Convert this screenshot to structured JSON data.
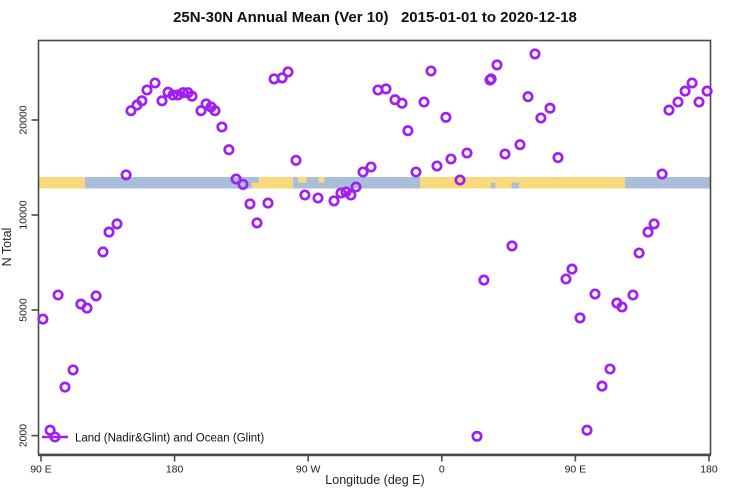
{
  "chart_data": {
    "type": "scatter",
    "title": "25N-30N Annual Mean (Ver 10)   2015-01-01 to 2020-12-18",
    "xlabel": "Longitude (deg E)",
    "ylabel": "N Total",
    "y_scale": "log10",
    "xlim": [
      88,
      541.3
    ],
    "ylim": [
      1740,
      35800
    ],
    "grid": "off",
    "x_ticks": [
      {
        "value": 90,
        "label": "90 E"
      },
      {
        "value": 180,
        "label": "180"
      },
      {
        "value": 270,
        "label": "90 W"
      },
      {
        "value": 360,
        "label": "0"
      },
      {
        "value": 450,
        "label": "90 E"
      },
      {
        "value": 540,
        "label": "180"
      }
    ],
    "y_ticks": [
      {
        "value": 2000,
        "label": "2000"
      },
      {
        "value": 5000,
        "label": "5000"
      },
      {
        "value": 10000,
        "label": "10000"
      },
      {
        "value": 20000,
        "label": "20000"
      }
    ],
    "legend": {
      "label": "Land (Nadir&Glint) and Ocean (Glint)",
      "position": "bottom-left",
      "marker": "open-circle-on-line"
    },
    "series": [
      {
        "name": "Land (Nadir&Glint) and Ocean (Glint)",
        "marker": "open-circle",
        "color": "#A020F0",
        "points": [
          [
            150.6,
            21400
          ],
          [
            154.7,
            22300
          ],
          [
            158.0,
            23000
          ],
          [
            161.4,
            24900
          ],
          [
            166.8,
            26200
          ],
          [
            171.5,
            23000
          ],
          [
            175.6,
            24500
          ],
          [
            178.9,
            24000
          ],
          [
            182.3,
            24000
          ],
          [
            185.7,
            24400
          ],
          [
            189.0,
            24400
          ],
          [
            191.7,
            23800
          ],
          [
            197.8,
            21400
          ],
          [
            201.2,
            22500
          ],
          [
            204.5,
            22000
          ],
          [
            207.2,
            21400
          ],
          [
            211.9,
            19000
          ],
          [
            216.6,
            16100
          ],
          [
            147.3,
            13400
          ],
          [
            221.4,
            13000
          ],
          [
            226.1,
            12500
          ],
          [
            230.8,
            10840
          ],
          [
            242.9,
            10910
          ],
          [
            235.5,
            9440
          ],
          [
            141.2,
            9370
          ],
          [
            135.8,
            8830
          ],
          [
            131.8,
            7640
          ],
          [
            101.5,
            5580
          ],
          [
            127.1,
            5540
          ],
          [
            116.9,
            5220
          ],
          [
            121.0,
            5070
          ],
          [
            91.3,
            4680
          ],
          [
            111.6,
            3230
          ],
          [
            106.2,
            2850
          ],
          [
            96.1,
            2080
          ],
          [
            247.0,
            27000
          ],
          [
            252.4,
            27200
          ],
          [
            256.4,
            28400
          ],
          [
            317.0,
            24900
          ],
          [
            322.4,
            25100
          ],
          [
            328.5,
            23200
          ],
          [
            333.2,
            22600
          ],
          [
            348.0,
            22800
          ],
          [
            352.7,
            28600
          ],
          [
            362.8,
            20400
          ],
          [
            337.2,
            18500
          ],
          [
            392.5,
            26800
          ],
          [
            261.8,
            14900
          ],
          [
            267.8,
            11570
          ],
          [
            276.6,
            11320
          ],
          [
            287.4,
            11080
          ],
          [
            292.1,
            11740
          ],
          [
            295.5,
            11830
          ],
          [
            298.8,
            11570
          ],
          [
            302.2,
            12270
          ],
          [
            306.9,
            13690
          ],
          [
            312.3,
            14190
          ],
          [
            342.6,
            13690
          ],
          [
            356.8,
            14300
          ],
          [
            366.2,
            15050
          ],
          [
            372.3,
            12910
          ],
          [
            377.0,
            15720
          ],
          [
            422.8,
            32400
          ],
          [
            397.2,
            29900
          ],
          [
            393.2,
            27000
          ],
          [
            418.1,
            23700
          ],
          [
            432.9,
            21800
          ],
          [
            426.8,
            20300
          ],
          [
            412.7,
            16700
          ],
          [
            402.6,
            15600
          ],
          [
            438.3,
            15200
          ],
          [
            513.1,
            21500
          ],
          [
            519.1,
            22800
          ],
          [
            523.9,
            24700
          ],
          [
            528.6,
            26200
          ],
          [
            533.3,
            22800
          ],
          [
            538.7,
            24700
          ],
          [
            508.4,
            13490
          ],
          [
            407.3,
            7980
          ],
          [
            503.0,
            9370
          ],
          [
            498.9,
            8830
          ],
          [
            492.9,
            7580
          ],
          [
            447.7,
            6740
          ],
          [
            443.7,
            6270
          ],
          [
            388.4,
            6220
          ],
          [
            463.2,
            5620
          ],
          [
            478.0,
            5260
          ],
          [
            481.4,
            5110
          ],
          [
            488.8,
            5580
          ],
          [
            453.1,
            4720
          ],
          [
            473.3,
            3250
          ],
          [
            467.9,
            2870
          ],
          [
            457.8,
            2080
          ],
          [
            383.7,
            1990
          ]
        ]
      }
    ],
    "map_strip": {
      "description": "land/ocean band at 25N-30N drawn across plot at ~N=12600",
      "value_center": 12600,
      "land_color": "#FAD87E",
      "ocean_color": "#A8BED9",
      "segments": [
        {
          "lon0": 88.0,
          "lon1": 119.6,
          "surface": "land",
          "part": "full"
        },
        {
          "lon0": 119.6,
          "lon1": 237.0,
          "surface": "ocean",
          "part": "full"
        },
        {
          "lon0": 237.0,
          "lon1": 259.8,
          "surface": "land",
          "part": "full"
        },
        {
          "lon0": 259.8,
          "lon1": 345.3,
          "surface": "ocean",
          "part": "full"
        },
        {
          "lon0": 345.3,
          "lon1": 483.4,
          "surface": "land",
          "part": "full"
        },
        {
          "lon0": 483.4,
          "lon1": 541.3,
          "surface": "ocean",
          "part": "full"
        },
        {
          "lon0": 232.0,
          "lon1": 238.0,
          "surface": "land",
          "part": "bottom"
        },
        {
          "lon0": 263.0,
          "lon1": 269.0,
          "surface": "land",
          "part": "top"
        },
        {
          "lon0": 277.0,
          "lon1": 281.0,
          "surface": "land",
          "part": "top"
        },
        {
          "lon0": 393.0,
          "lon1": 396.0,
          "surface": "ocean",
          "part": "bottom"
        },
        {
          "lon0": 407.0,
          "lon1": 412.0,
          "surface": "ocean",
          "part": "bottom"
        }
      ]
    },
    "frame_color": "#4a4a4a",
    "tick_label_color": "#222222"
  }
}
